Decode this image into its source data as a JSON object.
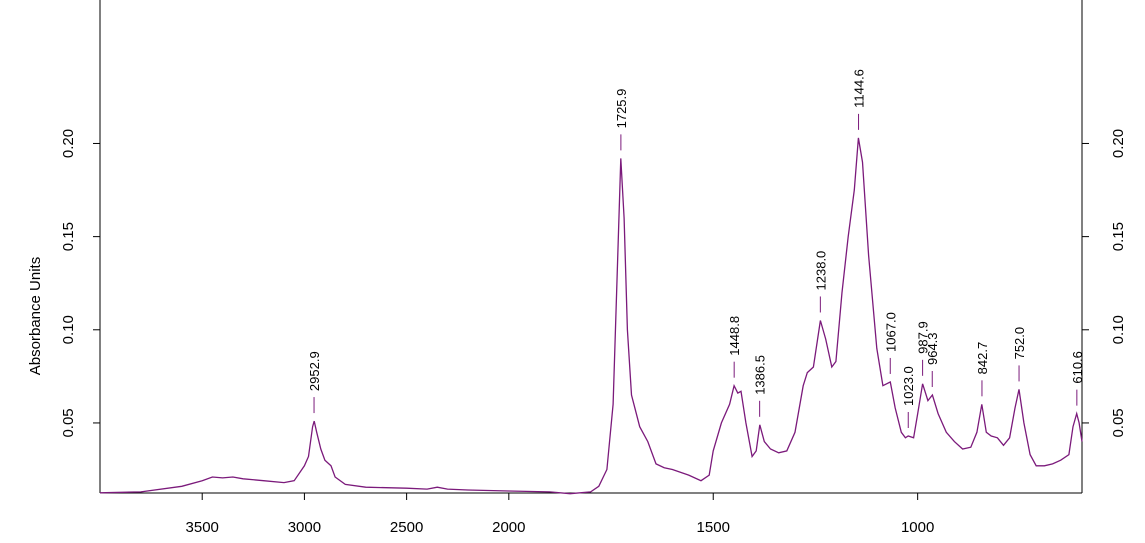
{
  "chart_data": {
    "type": "line",
    "ylabel": "Absorbance Units",
    "color": "#7b1a7b",
    "xlim": [
      4000,
      598
    ],
    "xbreak": 2000,
    "xbreak_stretch": 2,
    "xticks": [
      3500,
      3000,
      2500,
      2000,
      1500,
      1000
    ],
    "ylim": [
      0.0124,
      0.277
    ],
    "yticks": [
      0.05,
      0.1,
      0.15,
      0.2
    ],
    "ytick_labels": [
      "0.05",
      "0.10",
      "0.15",
      "0.20"
    ],
    "x": [
      4000,
      3800,
      3600,
      3500,
      3450,
      3400,
      3350,
      3300,
      3200,
      3100,
      3050,
      3000,
      2980,
      2960,
      2952,
      2940,
      2920,
      2900,
      2880,
      2870,
      2850,
      2800,
      2700,
      2500,
      2400,
      2350,
      2300,
      2200,
      2000,
      1900,
      1850,
      1800,
      1780,
      1760,
      1745,
      1735,
      1726,
      1718,
      1710,
      1700,
      1680,
      1660,
      1640,
      1620,
      1600,
      1560,
      1530,
      1510,
      1500,
      1480,
      1460,
      1449,
      1440,
      1432,
      1420,
      1405,
      1395,
      1386,
      1375,
      1360,
      1340,
      1320,
      1300,
      1280,
      1270,
      1255,
      1238,
      1225,
      1210,
      1200,
      1185,
      1170,
      1155,
      1145,
      1135,
      1120,
      1100,
      1085,
      1067,
      1055,
      1040,
      1030,
      1023,
      1010,
      1000,
      988,
      975,
      964,
      950,
      930,
      910,
      890,
      870,
      855,
      843,
      832,
      820,
      805,
      790,
      775,
      762,
      752,
      740,
      725,
      710,
      690,
      670,
      650,
      630,
      620,
      611,
      605,
      598
    ],
    "values": [
      0.0125,
      0.013,
      0.016,
      0.019,
      0.021,
      0.0205,
      0.021,
      0.02,
      0.019,
      0.018,
      0.019,
      0.027,
      0.032,
      0.048,
      0.051,
      0.045,
      0.036,
      0.03,
      0.028,
      0.027,
      0.021,
      0.017,
      0.0155,
      0.015,
      0.0145,
      0.0155,
      0.0145,
      0.014,
      0.0135,
      0.013,
      0.012,
      0.013,
      0.016,
      0.025,
      0.06,
      0.13,
      0.192,
      0.16,
      0.1,
      0.065,
      0.048,
      0.04,
      0.028,
      0.026,
      0.025,
      0.022,
      0.019,
      0.022,
      0.035,
      0.05,
      0.06,
      0.07,
      0.066,
      0.067,
      0.05,
      0.032,
      0.035,
      0.049,
      0.04,
      0.036,
      0.034,
      0.035,
      0.045,
      0.07,
      0.077,
      0.08,
      0.105,
      0.095,
      0.08,
      0.083,
      0.12,
      0.15,
      0.175,
      0.203,
      0.19,
      0.14,
      0.09,
      0.07,
      0.072,
      0.058,
      0.045,
      0.042,
      0.043,
      0.042,
      0.055,
      0.071,
      0.062,
      0.065,
      0.055,
      0.045,
      0.04,
      0.036,
      0.037,
      0.045,
      0.06,
      0.045,
      0.043,
      0.042,
      0.038,
      0.042,
      0.058,
      0.068,
      0.05,
      0.033,
      0.027,
      0.027,
      0.028,
      0.03,
      0.033,
      0.048,
      0.055,
      0.05,
      0.04
    ],
    "annotations": [
      {
        "x": 2952.9,
        "y": 0.051,
        "label": "2952.9"
      },
      {
        "x": 1725.9,
        "y": 0.192,
        "label": "1725.9"
      },
      {
        "x": 1448.8,
        "y": 0.07,
        "label": "1448.8"
      },
      {
        "x": 1386.5,
        "y": 0.049,
        "label": "1386.5"
      },
      {
        "x": 1238.0,
        "y": 0.105,
        "label": "1238.0"
      },
      {
        "x": 1144.6,
        "y": 0.203,
        "label": "1144.6"
      },
      {
        "x": 1067.0,
        "y": 0.072,
        "label": "1067.0"
      },
      {
        "x": 1023.0,
        "y": 0.043,
        "label": "1023.0"
      },
      {
        "x": 987.9,
        "y": 0.071,
        "label": "987.9"
      },
      {
        "x": 964.3,
        "y": 0.065,
        "label": "964.3"
      },
      {
        "x": 842.7,
        "y": 0.06,
        "label": "842.7"
      },
      {
        "x": 752.0,
        "y": 0.068,
        "label": "752.0"
      },
      {
        "x": 610.6,
        "y": 0.055,
        "label": "610.6"
      }
    ]
  }
}
